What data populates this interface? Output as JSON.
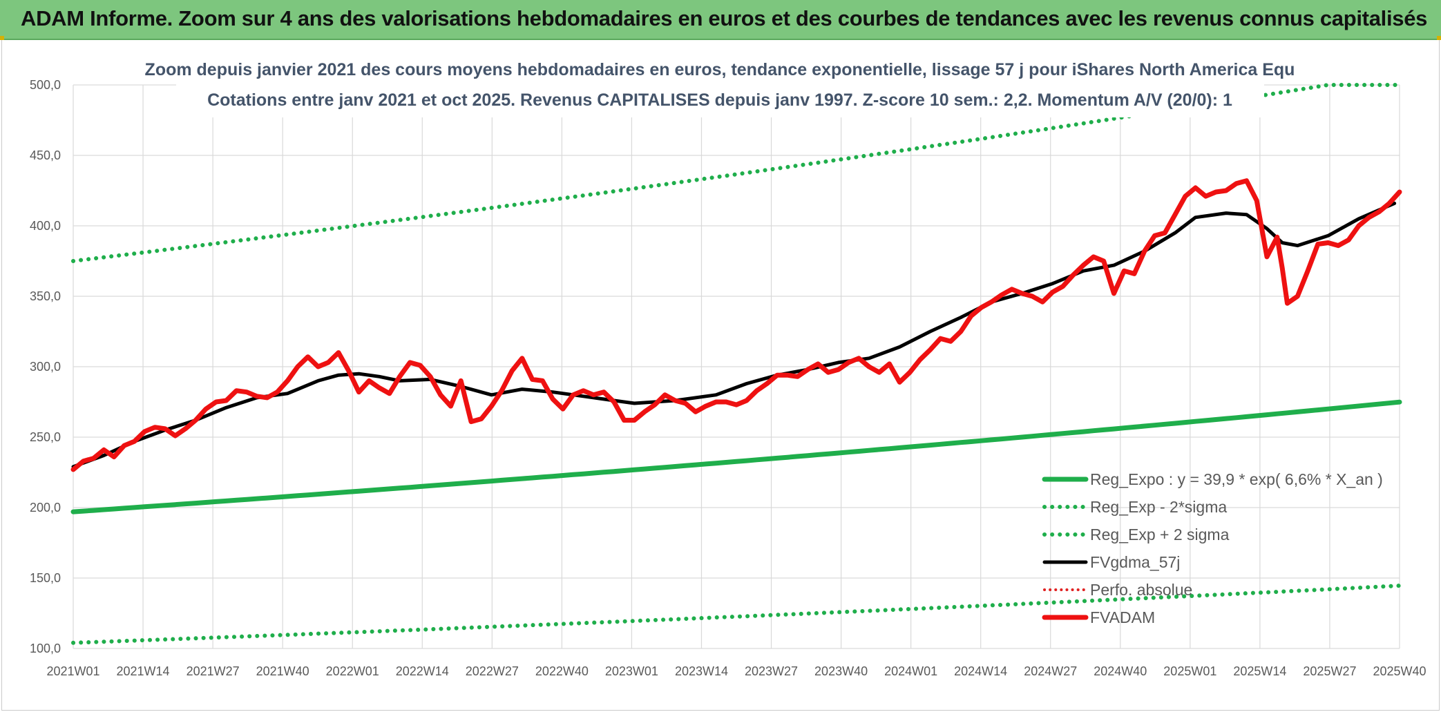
{
  "header": {
    "title": "ADAM Informe. Zoom sur 4 ans des valorisations hebdomadaires en euros et des courbes de tendances avec les revenus connus capitalisés"
  },
  "colors": {
    "header_bg": "#7dc67e",
    "reg_expo": "#1fae4b",
    "reg_band": "#1fae4b",
    "gdma": "#000000",
    "perfo": "#e02020",
    "fvadam": "#ee1111"
  },
  "chart_data": {
    "type": "line",
    "title": "Zoom depuis janvier 2021 des cours moyens hebdomadaires en euros, tendance exponentielle, lissage 57 j pour iShares North America Equ",
    "subtitle": "Cotations entre janv 2021 et oct 2025. Revenus CAPITALISES depuis janv 1997. Z-score 10 sem.: 2,2. Momentum A/V (20/0): 1",
    "ylim": [
      100,
      500
    ],
    "y_ticks": [
      "100,0",
      "150,0",
      "200,0",
      "250,0",
      "300,0",
      "350,0",
      "400,0",
      "450,0",
      "500,0"
    ],
    "x_ticks": [
      "2021W01",
      "2021W14",
      "2021W27",
      "2021W40",
      "2022W01",
      "2022W14",
      "2022W27",
      "2022W40",
      "2023W01",
      "2023W14",
      "2023W27",
      "2023W40",
      "2024W01",
      "2024W14",
      "2024W27",
      "2024W40",
      "2025W01",
      "2025W14",
      "2025W27",
      "2025W40"
    ],
    "grid": true,
    "legend_position": "bottom-right",
    "series": [
      {
        "name": "Reg_Expo : y = 39,9 * exp( 6,6% *  X_an )",
        "style": "solid",
        "points": [
          [
            0,
            197
          ],
          [
            246,
            270
          ]
        ]
      },
      {
        "name": "Reg_Exp - 2*sigma",
        "style": "dotted",
        "points": [
          [
            0,
            104
          ],
          [
            246,
            142
          ]
        ]
      },
      {
        "name": "Reg_Exp + 2 sigma",
        "style": "dotted",
        "points": [
          [
            0,
            375
          ],
          [
            246,
            500
          ]
        ]
      },
      {
        "name": "FVgdma_57j",
        "style": "solid",
        "points": [
          [
            0,
            229
          ],
          [
            6,
            237
          ],
          [
            12,
            247
          ],
          [
            18,
            255
          ],
          [
            24,
            262
          ],
          [
            30,
            271
          ],
          [
            36,
            278
          ],
          [
            42,
            281
          ],
          [
            48,
            290
          ],
          [
            52,
            294
          ],
          [
            56,
            295
          ],
          [
            60,
            293
          ],
          [
            64,
            290
          ],
          [
            70,
            291
          ],
          [
            76,
            286
          ],
          [
            82,
            280
          ],
          [
            88,
            284
          ],
          [
            94,
            282
          ],
          [
            100,
            279
          ],
          [
            106,
            276
          ],
          [
            110,
            274
          ],
          [
            118,
            276
          ],
          [
            126,
            280
          ],
          [
            132,
            288
          ],
          [
            138,
            294
          ],
          [
            144,
            298
          ],
          [
            150,
            303
          ],
          [
            156,
            306
          ],
          [
            162,
            314
          ],
          [
            168,
            325
          ],
          [
            174,
            335
          ],
          [
            180,
            346
          ],
          [
            186,
            352
          ],
          [
            192,
            359
          ],
          [
            198,
            368
          ],
          [
            204,
            372
          ],
          [
            210,
            382
          ],
          [
            216,
            395
          ],
          [
            220,
            406
          ],
          [
            226,
            409
          ],
          [
            230,
            408
          ],
          [
            234,
            398
          ],
          [
            237,
            388
          ],
          [
            240,
            386
          ],
          [
            246,
            393
          ],
          [
            252,
            405
          ],
          [
            259,
            416
          ]
        ]
      },
      {
        "name": "Perfo. absolue",
        "style": "dotted",
        "points": []
      },
      {
        "name": "FVADAM",
        "style": "solid",
        "points": [
          [
            0,
            227
          ],
          [
            2,
            233
          ],
          [
            4,
            235
          ],
          [
            6,
            241
          ],
          [
            8,
            236
          ],
          [
            10,
            244
          ],
          [
            12,
            247
          ],
          [
            14,
            254
          ],
          [
            16,
            257
          ],
          [
            18,
            256
          ],
          [
            20,
            251
          ],
          [
            22,
            256
          ],
          [
            24,
            262
          ],
          [
            26,
            270
          ],
          [
            28,
            275
          ],
          [
            30,
            276
          ],
          [
            32,
            283
          ],
          [
            34,
            282
          ],
          [
            36,
            279
          ],
          [
            38,
            278
          ],
          [
            40,
            282
          ],
          [
            42,
            290
          ],
          [
            44,
            300
          ],
          [
            46,
            307
          ],
          [
            48,
            300
          ],
          [
            50,
            303
          ],
          [
            52,
            310
          ],
          [
            54,
            297
          ],
          [
            56,
            282
          ],
          [
            58,
            290
          ],
          [
            60,
            285
          ],
          [
            62,
            281
          ],
          [
            64,
            293
          ],
          [
            66,
            303
          ],
          [
            68,
            301
          ],
          [
            70,
            293
          ],
          [
            72,
            280
          ],
          [
            74,
            272
          ],
          [
            76,
            290
          ],
          [
            78,
            261
          ],
          [
            80,
            263
          ],
          [
            82,
            272
          ],
          [
            84,
            283
          ],
          [
            86,
            297
          ],
          [
            88,
            306
          ],
          [
            90,
            291
          ],
          [
            92,
            290
          ],
          [
            94,
            277
          ],
          [
            96,
            270
          ],
          [
            98,
            280
          ],
          [
            100,
            283
          ],
          [
            102,
            280
          ],
          [
            104,
            282
          ],
          [
            106,
            275
          ],
          [
            108,
            262
          ],
          [
            110,
            262
          ],
          [
            112,
            268
          ],
          [
            114,
            273
          ],
          [
            116,
            280
          ],
          [
            118,
            276
          ],
          [
            120,
            274
          ],
          [
            122,
            268
          ],
          [
            124,
            272
          ],
          [
            126,
            275
          ],
          [
            128,
            275
          ],
          [
            130,
            273
          ],
          [
            132,
            276
          ],
          [
            134,
            283
          ],
          [
            136,
            288
          ],
          [
            138,
            294
          ],
          [
            140,
            294
          ],
          [
            142,
            293
          ],
          [
            144,
            298
          ],
          [
            146,
            302
          ],
          [
            148,
            296
          ],
          [
            150,
            298
          ],
          [
            152,
            303
          ],
          [
            154,
            306
          ],
          [
            156,
            300
          ],
          [
            158,
            296
          ],
          [
            160,
            302
          ],
          [
            162,
            289
          ],
          [
            164,
            296
          ],
          [
            166,
            305
          ],
          [
            168,
            312
          ],
          [
            170,
            320
          ],
          [
            172,
            318
          ],
          [
            174,
            325
          ],
          [
            176,
            336
          ],
          [
            178,
            342
          ],
          [
            180,
            346
          ],
          [
            182,
            351
          ],
          [
            184,
            355
          ],
          [
            186,
            352
          ],
          [
            188,
            350
          ],
          [
            190,
            346
          ],
          [
            192,
            353
          ],
          [
            194,
            357
          ],
          [
            196,
            365
          ],
          [
            198,
            372
          ],
          [
            200,
            378
          ],
          [
            202,
            375
          ],
          [
            204,
            352
          ],
          [
            206,
            368
          ],
          [
            208,
            366
          ],
          [
            210,
            382
          ],
          [
            212,
            393
          ],
          [
            214,
            395
          ],
          [
            216,
            408
          ],
          [
            218,
            421
          ],
          [
            220,
            427
          ],
          [
            222,
            421
          ],
          [
            224,
            424
          ],
          [
            226,
            425
          ],
          [
            228,
            430
          ],
          [
            230,
            432
          ],
          [
            232,
            418
          ],
          [
            234,
            378
          ],
          [
            236,
            392
          ],
          [
            237,
            370
          ],
          [
            238,
            345
          ],
          [
            240,
            350
          ],
          [
            242,
            368
          ],
          [
            244,
            387
          ],
          [
            246,
            388
          ],
          [
            248,
            386
          ],
          [
            250,
            390
          ],
          [
            252,
            400
          ],
          [
            254,
            406
          ],
          [
            256,
            410
          ],
          [
            258,
            416
          ],
          [
            260,
            424
          ]
        ]
      }
    ]
  }
}
